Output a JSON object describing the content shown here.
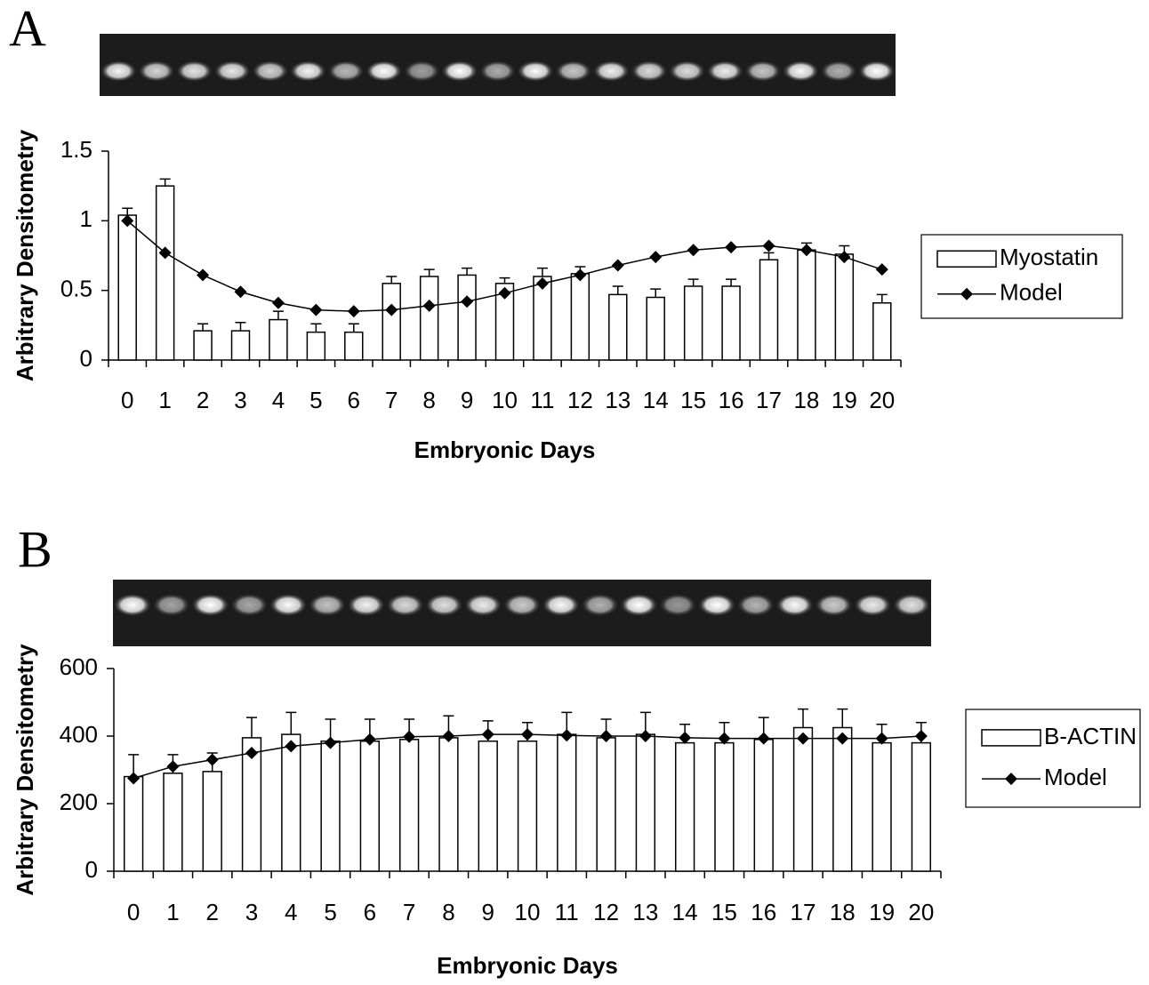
{
  "chart_data": [
    {
      "type": "bar",
      "panel": "A",
      "xlabel": "Embryonic Days",
      "ylabel": "Arbitrary Densitometry",
      "categories": [
        "0",
        "1",
        "2",
        "3",
        "4",
        "5",
        "6",
        "7",
        "8",
        "9",
        "10",
        "11",
        "12",
        "13",
        "14",
        "15",
        "16",
        "17",
        "18",
        "19",
        "20"
      ],
      "ylim": [
        0,
        1.5
      ],
      "yticks": [
        0,
        0.5,
        1,
        1.5
      ],
      "legend": "right",
      "series": [
        {
          "name": "Myostatin",
          "type": "bar",
          "color": "#ffffff",
          "values": [
            1.04,
            1.25,
            0.21,
            0.21,
            0.29,
            0.2,
            0.2,
            0.55,
            0.6,
            0.61,
            0.55,
            0.6,
            0.62,
            0.47,
            0.45,
            0.53,
            0.53,
            0.72,
            0.79,
            0.76,
            0.41
          ],
          "errors": [
            0.05,
            0.05,
            0.05,
            0.06,
            0.06,
            0.06,
            0.06,
            0.05,
            0.05,
            0.05,
            0.04,
            0.06,
            0.05,
            0.06,
            0.06,
            0.05,
            0.05,
            0.05,
            0.05,
            0.06,
            0.06
          ]
        },
        {
          "name": "Model",
          "type": "line",
          "color": "#000000",
          "values": [
            1.0,
            0.77,
            0.61,
            0.49,
            0.41,
            0.36,
            0.35,
            0.36,
            0.39,
            0.42,
            0.48,
            0.55,
            0.61,
            0.68,
            0.74,
            0.79,
            0.81,
            0.82,
            0.79,
            0.74,
            0.65
          ]
        }
      ]
    },
    {
      "type": "bar",
      "panel": "B",
      "xlabel": "Embryonic Days",
      "ylabel": "Arbitrary Densitometry",
      "categories": [
        "0",
        "1",
        "2",
        "3",
        "4",
        "5",
        "6",
        "7",
        "8",
        "9",
        "10",
        "11",
        "12",
        "13",
        "14",
        "15",
        "16",
        "17",
        "18",
        "19",
        "20"
      ],
      "ylim": [
        0,
        600
      ],
      "yticks": [
        0,
        200,
        400,
        600
      ],
      "legend": "right",
      "series": [
        {
          "name": "B-ACTIN",
          "type": "bar",
          "color": "#ffffff",
          "values": [
            280,
            290,
            295,
            395,
            405,
            385,
            385,
            390,
            395,
            385,
            385,
            405,
            395,
            405,
            380,
            380,
            390,
            425,
            425,
            380,
            380
          ],
          "errors": [
            65,
            55,
            55,
            60,
            65,
            65,
            65,
            60,
            65,
            60,
            55,
            65,
            55,
            65,
            55,
            60,
            65,
            55,
            55,
            55,
            60
          ]
        },
        {
          "name": "Model",
          "type": "line",
          "color": "#000000",
          "values": [
            275,
            310,
            330,
            350,
            370,
            380,
            390,
            398,
            400,
            405,
            405,
            402,
            400,
            400,
            395,
            393,
            393,
            393,
            393,
            393,
            400
          ]
        }
      ]
    }
  ]
}
